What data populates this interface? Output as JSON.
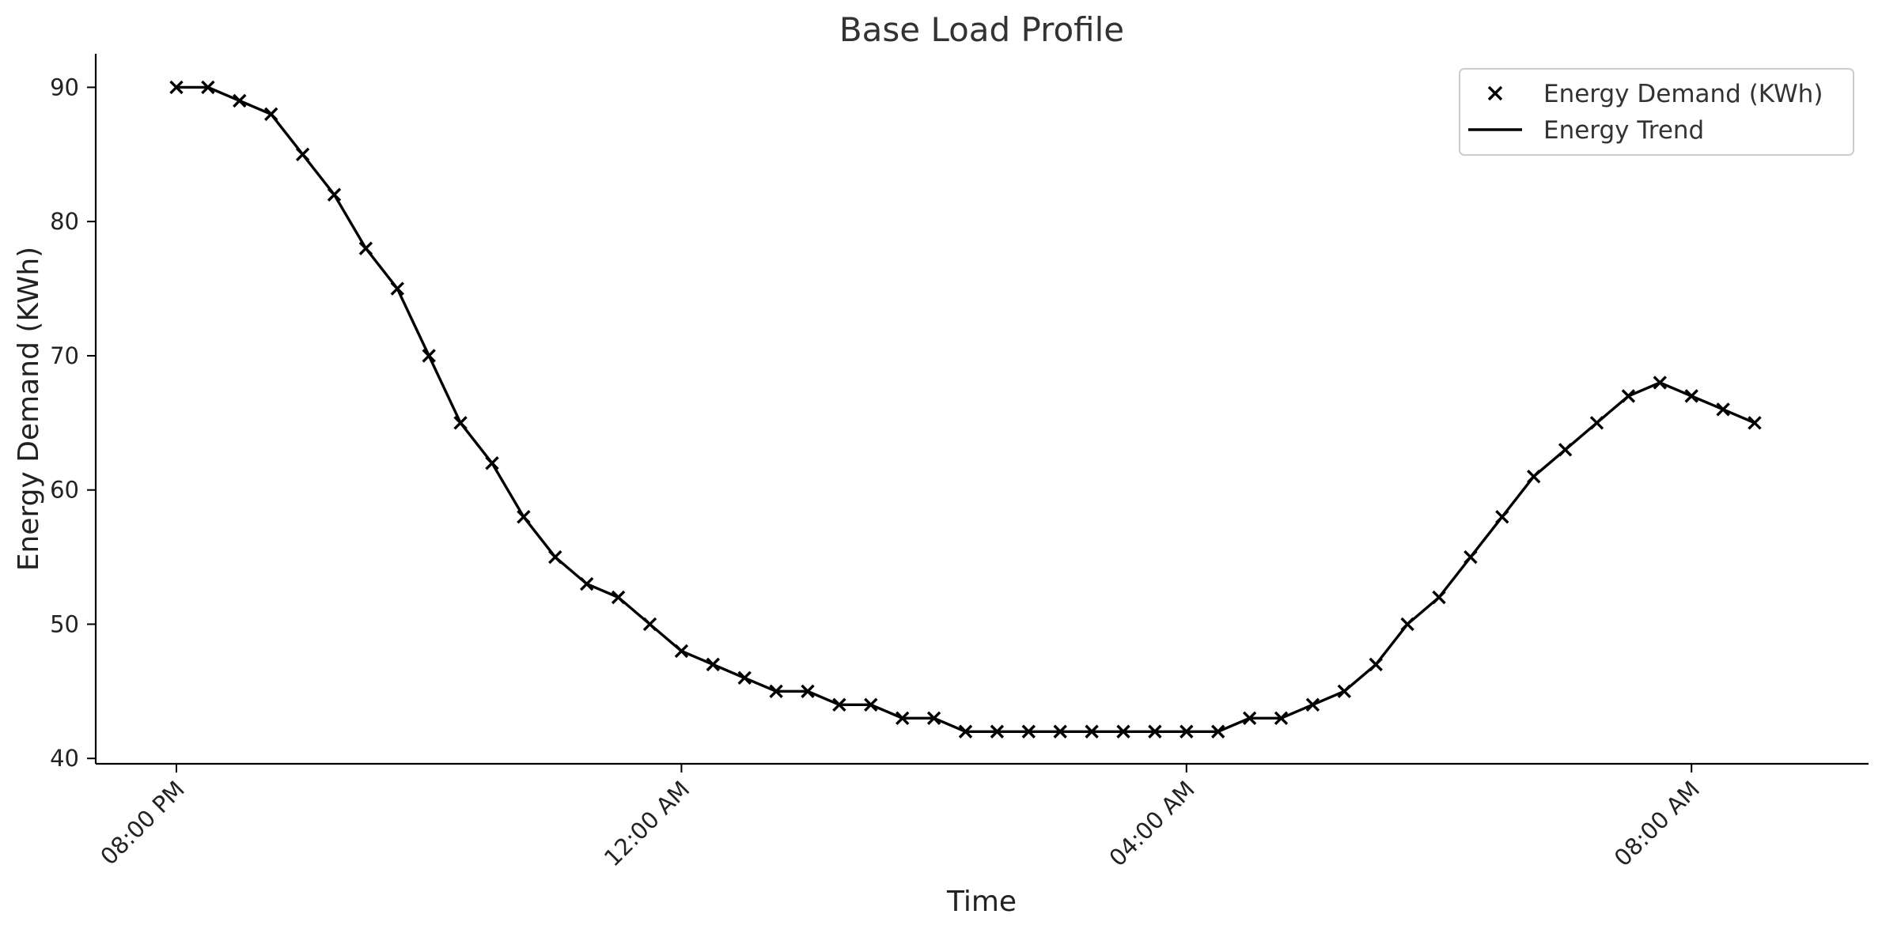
{
  "chart_data": {
    "type": "line",
    "title": "Base Load Profile",
    "xlabel": "Time",
    "ylabel": "Energy Demand (KWh)",
    "ylim": [
      39.6,
      92.5
    ],
    "yticks": [
      40,
      50,
      60,
      70,
      80,
      90
    ],
    "xtick_labels": [
      "08:00 PM",
      "12:00 AM",
      "04:00 AM",
      "08:00 AM"
    ],
    "x_interval": "15 min",
    "x_start": "08:00 PM",
    "legend": {
      "position": "top-right",
      "entries": [
        "Energy Demand (KWh)",
        "Energy Trend"
      ]
    },
    "grid": false,
    "series": [
      {
        "name": "Energy Demand (KWh)",
        "marker": "x",
        "color": "#000000",
        "values": [
          90,
          90,
          89,
          88,
          85,
          82,
          78,
          75,
          70,
          65,
          62,
          58,
          55,
          53,
          52,
          50,
          48,
          47,
          46,
          45,
          45,
          44,
          44,
          43,
          43,
          42,
          42,
          42,
          42,
          42,
          42,
          42,
          42,
          42,
          43,
          43,
          44,
          45,
          47,
          50,
          52,
          55,
          58,
          61,
          63,
          65,
          67,
          68,
          67,
          66,
          65
        ]
      },
      {
        "name": "Energy Trend",
        "color": "#000000",
        "values": [
          90,
          90,
          89,
          88,
          85,
          82,
          78,
          75,
          70,
          65,
          62,
          58,
          55,
          53,
          52,
          50,
          48,
          47,
          46,
          45,
          45,
          44,
          44,
          43,
          43,
          42,
          42,
          42,
          42,
          42,
          42,
          42,
          42,
          42,
          43,
          43,
          44,
          45,
          47,
          50,
          52,
          55,
          58,
          61,
          63,
          65,
          67,
          68,
          67,
          66,
          65
        ]
      }
    ]
  }
}
